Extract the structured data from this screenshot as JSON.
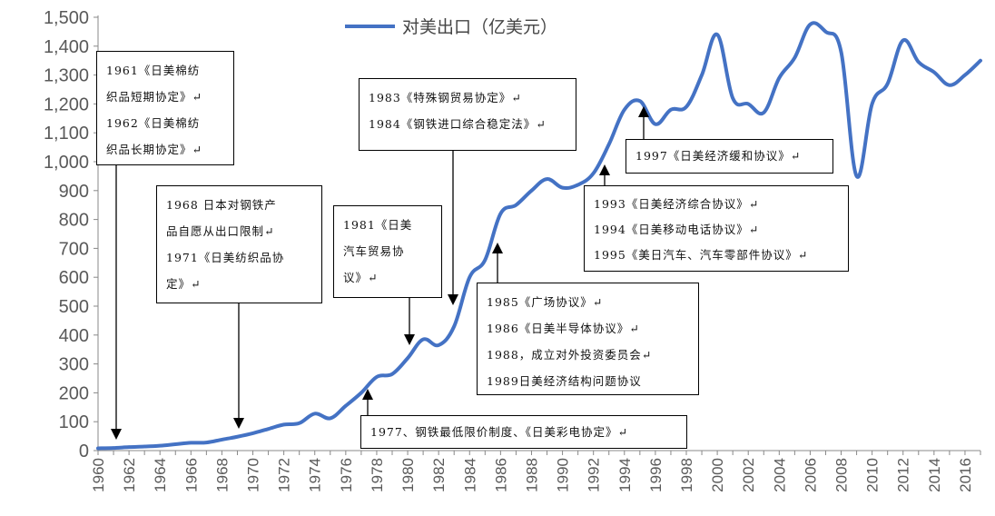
{
  "chart_data": {
    "type": "line",
    "title": "",
    "xlabel": "",
    "ylabel": "",
    "ylim": [
      0,
      1500
    ],
    "yticks": [
      0,
      100,
      200,
      300,
      400,
      500,
      600,
      700,
      800,
      900,
      1000,
      1100,
      1200,
      1300,
      1400,
      1500
    ],
    "ytick_labels": [
      "0",
      "100",
      "200",
      "300",
      "400",
      "500",
      "600",
      "700",
      "800",
      "900",
      "1,000",
      "1,100",
      "1,200",
      "1,300",
      "1,400",
      "1,500"
    ],
    "xlim": [
      1960,
      2017
    ],
    "xtick_labels": [
      "1960",
      "1962",
      "1964",
      "1966",
      "1968",
      "1970",
      "1972",
      "1974",
      "1976",
      "1978",
      "1980",
      "1982",
      "1984",
      "1986",
      "1988",
      "1990",
      "1992",
      "1994",
      "1996",
      "1998",
      "2000",
      "2002",
      "2004",
      "2006",
      "2008",
      "2010",
      "2012",
      "2014",
      "2016"
    ],
    "legend_position": "top",
    "series": [
      {
        "name": "对美出口（亿美元）",
        "color": "#4472C4",
        "x": [
          1960,
          1961,
          1962,
          1963,
          1964,
          1965,
          1966,
          1967,
          1968,
          1969,
          1970,
          1971,
          1972,
          1973,
          1974,
          1975,
          1976,
          1977,
          1978,
          1979,
          1980,
          1981,
          1982,
          1983,
          1984,
          1985,
          1986,
          1987,
          1988,
          1989,
          1990,
          1991,
          1992,
          1993,
          1994,
          1995,
          1996,
          1997,
          1998,
          1999,
          2000,
          2001,
          2002,
          2003,
          2004,
          2005,
          2006,
          2007,
          2008,
          2009,
          2010,
          2011,
          2012,
          2013,
          2014,
          2015,
          2016,
          2017
        ],
        "values": [
          8,
          9,
          12,
          14,
          17,
          22,
          27,
          28,
          38,
          48,
          60,
          75,
          90,
          95,
          128,
          112,
          155,
          200,
          255,
          265,
          320,
          385,
          365,
          430,
          600,
          660,
          820,
          850,
          900,
          940,
          910,
          920,
          960,
          1060,
          1180,
          1210,
          1130,
          1180,
          1190,
          1300,
          1440,
          1220,
          1200,
          1170,
          1290,
          1360,
          1475,
          1450,
          1380,
          950,
          1200,
          1270,
          1420,
          1345,
          1310,
          1265,
          1300,
          1350
        ]
      }
    ]
  },
  "annotations": [
    {
      "id": "ann-1961-1962",
      "lines": [
        "1961《日美棉纺",
        "织品短期协定》↵",
        "1962《日美棉纺",
        "织品长期协定》↵"
      ]
    },
    {
      "id": "ann-1968-1971",
      "lines": [
        "1968  日本对钢铁产",
        "品自愿从出口限制↵",
        "1971《日美纺织品协",
        "定》↵"
      ]
    },
    {
      "id": "ann-1977",
      "lines": [
        "1977、钢铁最低限价制度、《日美彩电协定》↵"
      ]
    },
    {
      "id": "ann-1981",
      "lines": [
        "1981《日美",
        "汽车贸易协",
        "议》↵"
      ]
    },
    {
      "id": "ann-1983-1984",
      "lines": [
        "1983《特殊钢贸易协定》↵",
        "1984《钢铁进口综合稳定法》↵"
      ]
    },
    {
      "id": "ann-1985-1989",
      "lines": [
        "1985《广场协议》↵",
        "1986《日美半导体协议》↵",
        "1988，成立对外投资委员会↵",
        "1989日美经济结构问题协议"
      ]
    },
    {
      "id": "ann-1993-1995",
      "lines": [
        "1993《日美经济综合协议》↵",
        "1994《日美移动电话协议》↵",
        "1995《美日汽车、汽车零部件协议》↵"
      ]
    },
    {
      "id": "ann-1997",
      "lines": [
        "1997《日美经济缓和协议》↵"
      ]
    }
  ]
}
